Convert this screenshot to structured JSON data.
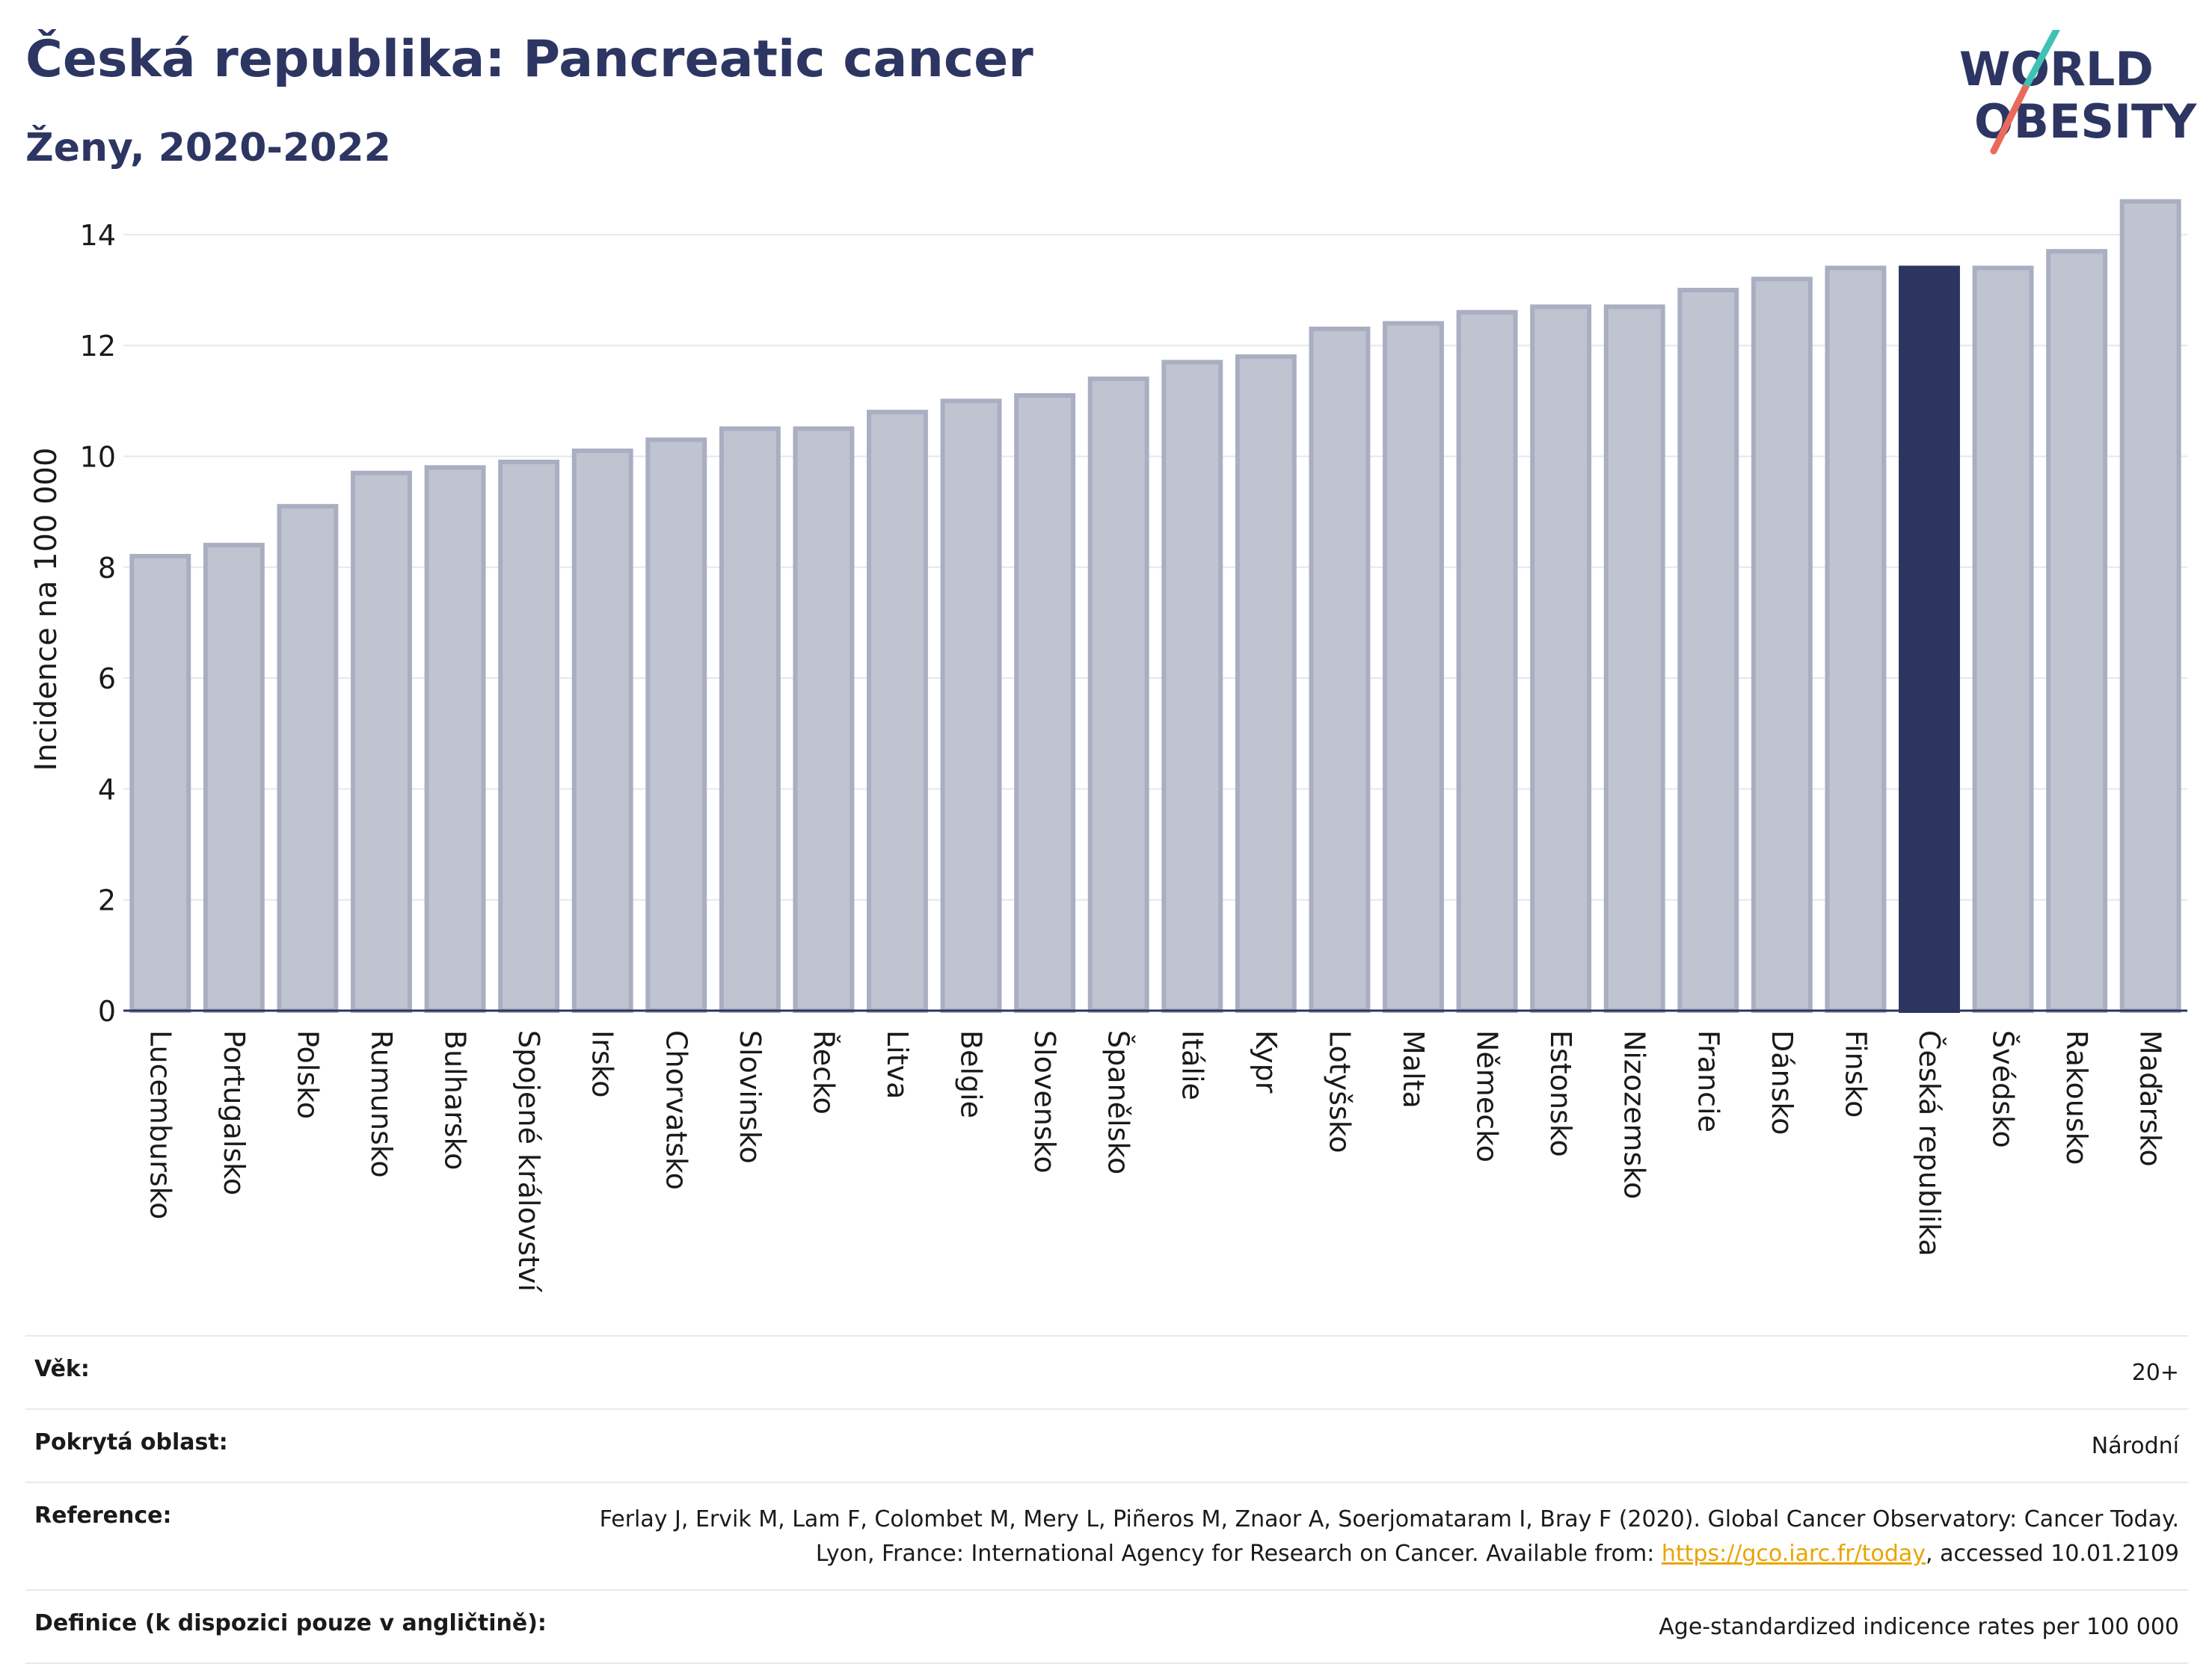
{
  "header": {
    "title": "Česká republika: Pancreatic cancer",
    "subtitle": "Ženy, 2020-2022"
  },
  "logo": {
    "line1": "WORLD",
    "line2": "OBESITY"
  },
  "chart_data": {
    "type": "bar",
    "ylabel": "Incidence na 100 000",
    "ylim": [
      0,
      14.7
    ],
    "yticks": [
      0,
      2,
      4,
      6,
      8,
      10,
      12,
      14
    ],
    "grid": true,
    "categories": [
      "Lucembursko",
      "Portugalsko",
      "Polsko",
      "Rumunsko",
      "Bulharsko",
      "Spojené království",
      "Irsko",
      "Chorvatsko",
      "Slovinsko",
      "Řecko",
      "Litva",
      "Belgie",
      "Slovensko",
      "Španělsko",
      "Itálie",
      "Kypr",
      "Lotyšsko",
      "Malta",
      "Německo",
      "Estonsko",
      "Nizozemsko",
      "Francie",
      "Dánsko",
      "Finsko",
      "Česká republika",
      "Švédsko",
      "Rakousko",
      "Maďarsko"
    ],
    "values": [
      8.2,
      8.4,
      9.1,
      9.7,
      9.8,
      9.9,
      10.1,
      10.3,
      10.5,
      10.5,
      10.8,
      11.0,
      11.1,
      11.4,
      11.7,
      11.8,
      12.3,
      12.4,
      12.6,
      12.7,
      12.7,
      13.0,
      13.2,
      13.4,
      13.4,
      13.4,
      13.7,
      14.6
    ],
    "highlight": "Česká republika",
    "colors": {
      "bar": "#c0c3d0",
      "bar_border": "#a9aec2",
      "highlight": "#2c3560",
      "grid": "#e6e7ec",
      "axis": "#2c3560"
    }
  },
  "info": {
    "age_label": "Věk:",
    "age_value": "20+",
    "area_label": "Pokrytá oblast:",
    "area_value": "Národní",
    "reference_label": "Reference:",
    "reference_text_1": "Ferlay J, Ervik M, Lam F, Colombet M, Mery L, Piñeros M, Znaor A, Soerjomataram I, Bray F (2020). Global Cancer Observatory: Cancer Today. Lyon, France: International Agency for Research on Cancer. Available from: ",
    "reference_link": "https://gco.iarc.fr/today",
    "reference_text_2": ", accessed 10.01.2109",
    "definition_label": "Definice (k dispozici pouze v angličtině):",
    "definition_value": "Age-standardized indicence rates per 100 000"
  }
}
